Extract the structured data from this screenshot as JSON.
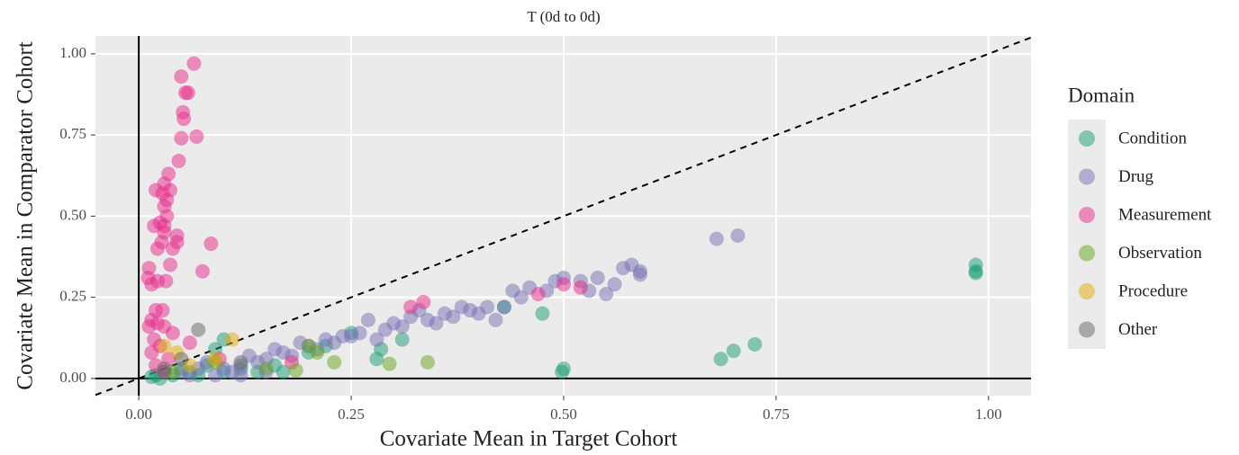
{
  "chart_data": {
    "type": "scatter",
    "title": "T (0d to 0d)",
    "x_label": "Covariate Mean in Target Cohort",
    "y_label": "Covariate Mean in Comparator Cohort",
    "legend_title": "Domain",
    "xlim": [
      -0.051,
      1.05
    ],
    "ylim": [
      -0.053,
      1.055
    ],
    "xticks": [
      {
        "value": 0,
        "label": "0.00"
      },
      {
        "value": 0.25,
        "label": "0.25"
      },
      {
        "value": 0.5,
        "label": "0.50"
      },
      {
        "value": 0.75,
        "label": "0.75"
      },
      {
        "value": 1,
        "label": "1.00"
      }
    ],
    "yticks": [
      {
        "value": 0,
        "label": "0.00"
      },
      {
        "value": 0.25,
        "label": "0.25"
      },
      {
        "value": 0.5,
        "label": "0.50"
      },
      {
        "value": 0.75,
        "label": "0.75"
      },
      {
        "value": 1,
        "label": "1.00"
      }
    ],
    "grid": true,
    "series": [
      {
        "name": "Condition",
        "color": "#1b9e77",
        "x": [
          0.985,
          0.985,
          0.985,
          0.725,
          0.7,
          0.685,
          0.5,
          0.498,
          0.475,
          0.43,
          0.31,
          0.285,
          0.28,
          0.25,
          0.1,
          0.09,
          0.02,
          0.03,
          0.04,
          0.05,
          0.06,
          0.07,
          0.08,
          0.1,
          0.12,
          0.14,
          0.16,
          0.17,
          0.2,
          0.22,
          0.015,
          0.025
        ],
        "y": [
          0.35,
          0.33,
          0.325,
          0.105,
          0.085,
          0.06,
          0.03,
          0.02,
          0.2,
          0.22,
          0.12,
          0.09,
          0.06,
          0.14,
          0.12,
          0.09,
          0.01,
          0.02,
          0.01,
          0.03,
          0.02,
          0.01,
          0.04,
          0.02,
          0.03,
          0.02,
          0.04,
          0.02,
          0.08,
          0.1,
          0.005,
          0
        ]
      },
      {
        "name": "Drug",
        "color": "#7570b3",
        "x": [
          0.1,
          0.12,
          0.15,
          0.17,
          0.2,
          0.22,
          0.24,
          0.26,
          0.27,
          0.29,
          0.3,
          0.32,
          0.33,
          0.35,
          0.36,
          0.38,
          0.4,
          0.42,
          0.43,
          0.44,
          0.45,
          0.46,
          0.48,
          0.49,
          0.5,
          0.52,
          0.53,
          0.54,
          0.55,
          0.56,
          0.57,
          0.58,
          0.59,
          0.59,
          0.68,
          0.705,
          0.13,
          0.14,
          0.16,
          0.18,
          0.19,
          0.21,
          0.23,
          0.25,
          0.28,
          0.31,
          0.34,
          0.37,
          0.39,
          0.41,
          0.05,
          0.07,
          0.08,
          0.11,
          0.09,
          0.06,
          0.15,
          0.12
        ],
        "y": [
          0.03,
          0.04,
          0.06,
          0.08,
          0.1,
          0.12,
          0.13,
          0.14,
          0.18,
          0.15,
          0.17,
          0.19,
          0.21,
          0.17,
          0.2,
          0.22,
          0.2,
          0.18,
          0.22,
          0.27,
          0.25,
          0.28,
          0.27,
          0.3,
          0.31,
          0.3,
          0.27,
          0.31,
          0.26,
          0.29,
          0.34,
          0.35,
          0.33,
          0.32,
          0.43,
          0.44,
          0.07,
          0.05,
          0.09,
          0.07,
          0.11,
          0.09,
          0.11,
          0.13,
          0.12,
          0.16,
          0.18,
          0.19,
          0.21,
          0.22,
          0.02,
          0.03,
          0.05,
          0.02,
          0.01,
          0.01,
          0.02,
          0.01
        ]
      },
      {
        "name": "Measurement",
        "color": "#e7298a",
        "x": [
          0.065,
          0.05,
          0.055,
          0.058,
          0.052,
          0.053,
          0.05,
          0.068,
          0.047,
          0.035,
          0.03,
          0.037,
          0.02,
          0.028,
          0.033,
          0.03,
          0.033,
          0.025,
          0.03,
          0.018,
          0.045,
          0.03,
          0.027,
          0.045,
          0.04,
          0.022,
          0.085,
          0.037,
          0.075,
          0.012,
          0.022,
          0.011,
          0.015,
          0.032,
          0.02,
          0.028,
          0.015,
          0.022,
          0.03,
          0.012,
          0.04,
          0.018,
          0.06,
          0.025,
          0.015,
          0.035,
          0.02,
          0.03,
          0.32,
          0.335,
          0.47,
          0.52,
          0.5,
          0.095,
          0.18
        ],
        "y": [
          0.97,
          0.93,
          0.88,
          0.88,
          0.82,
          0.8,
          0.74,
          0.745,
          0.67,
          0.63,
          0.6,
          0.58,
          0.58,
          0.57,
          0.55,
          0.53,
          0.5,
          0.48,
          0.47,
          0.47,
          0.44,
          0.45,
          0.42,
          0.42,
          0.4,
          0.4,
          0.415,
          0.35,
          0.33,
          0.34,
          0.3,
          0.31,
          0.29,
          0.3,
          0.21,
          0.21,
          0.18,
          0.17,
          0.16,
          0.16,
          0.14,
          0.12,
          0.11,
          0.1,
          0.08,
          0.06,
          0.04,
          0.02,
          0.22,
          0.235,
          0.26,
          0.28,
          0.29,
          0.06,
          0.05
        ]
      },
      {
        "name": "Observation",
        "color": "#66a61e",
        "x": [
          0.34,
          0.295,
          0.23,
          0.185,
          0.2,
          0.21,
          0.15,
          0.09,
          0.04
        ],
        "y": [
          0.05,
          0.045,
          0.05,
          0.025,
          0.1,
          0.08,
          0.03,
          0.05,
          0.02
        ]
      },
      {
        "name": "Procedure",
        "color": "#e6ab02",
        "x": [
          0.11,
          0.045,
          0.03,
          0.06,
          0.09
        ],
        "y": [
          0.12,
          0.08,
          0.1,
          0.04,
          0.06
        ]
      },
      {
        "name": "Other",
        "color": "#666666",
        "x": [
          0.07,
          0.05,
          0.12,
          0.03
        ],
        "y": [
          0.15,
          0.06,
          0.05,
          0.03
        ]
      }
    ]
  }
}
